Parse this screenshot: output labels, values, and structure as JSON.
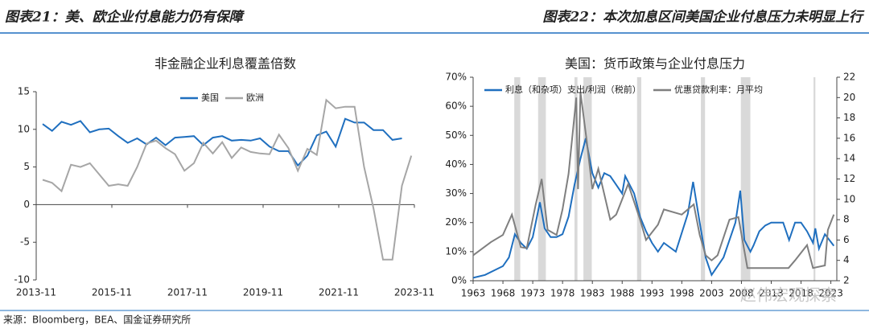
{
  "header": {
    "left_title": "图表21：美、欧企业付息能力仍有保障",
    "right_title": "图表22：本次加息区间美国企业付息压力未明显上行"
  },
  "source": "来源：Bloomberg，BEA、国金证券研究所",
  "watermark": "赵伟宏观探索",
  "chart_data": [
    {
      "type": "line",
      "title": "非金融企业利息覆盖倍数",
      "legend": "upper center",
      "x": [
        2014.0,
        2014.25,
        2014.5,
        2014.75,
        2015.0,
        2015.25,
        2015.5,
        2015.75,
        2016.0,
        2016.25,
        2016.5,
        2016.75,
        2017.0,
        2017.25,
        2017.5,
        2017.75,
        2018.0,
        2018.25,
        2018.5,
        2018.75,
        2019.0,
        2019.25,
        2019.5,
        2019.75,
        2020.0,
        2020.25,
        2020.5,
        2020.75,
        2021.0,
        2021.25,
        2021.5,
        2021.75,
        2022.0,
        2022.25,
        2022.5,
        2022.75,
        2023.0,
        2023.25,
        2023.5,
        2023.75
      ],
      "series": [
        {
          "name": "美国",
          "color": "#1f6fbf",
          "values": [
            10.7,
            9.8,
            11.0,
            10.6,
            11.1,
            9.6,
            10.0,
            10.1,
            9.1,
            8.2,
            8.8,
            8.0,
            8.9,
            7.9,
            8.9,
            9.0,
            9.1,
            7.9,
            8.9,
            9.1,
            8.5,
            8.6,
            8.5,
            8.8,
            7.7,
            7.1,
            7.1,
            5.2,
            6.5,
            9.2,
            9.7,
            7.7,
            11.4,
            10.9,
            10.9,
            9.9,
            9.9,
            8.6,
            8.8,
            null
          ]
        },
        {
          "name": "欧洲",
          "color": "#a6a6a6",
          "values": [
            3.3,
            2.9,
            1.8,
            5.3,
            5.0,
            5.5,
            4.0,
            2.5,
            2.7,
            2.5,
            5.0,
            8.1,
            8.5,
            7.5,
            6.7,
            4.5,
            5.5,
            8.2,
            6.8,
            8.3,
            6.2,
            7.6,
            7.0,
            6.8,
            6.7,
            9.3,
            7.5,
            4.5,
            7.4,
            6.6,
            13.9,
            12.8,
            13.0,
            13.0,
            5.0,
            -0.5,
            -7.3,
            -7.3,
            2.5,
            6.5
          ]
        }
      ],
      "xlim": [
        2013.83,
        2023.83
      ],
      "xticks": [
        {
          "value": 2013.83,
          "label": "2013-11"
        },
        {
          "value": 2015.83,
          "label": "2015-11"
        },
        {
          "value": 2017.83,
          "label": "2017-11"
        },
        {
          "value": 2019.83,
          "label": "2019-11"
        },
        {
          "value": 2021.83,
          "label": "2021-11"
        },
        {
          "value": 2023.83,
          "label": "2023-11"
        }
      ],
      "ylim": [
        -10,
        15
      ],
      "yticks": [
        -10,
        -5,
        0,
        5,
        10,
        15
      ]
    },
    {
      "type": "line",
      "title": "美国：货币政策与企业付息压力",
      "legend": "upper left",
      "recessions": [
        [
          1969.9,
          1970.9
        ],
        [
          1973.9,
          1975.2
        ],
        [
          1980.0,
          1980.5
        ],
        [
          1981.5,
          1982.9
        ],
        [
          1990.5,
          1991.2
        ],
        [
          2001.2,
          2001.9
        ],
        [
          2007.9,
          2009.5
        ],
        [
          2020.1,
          2020.4
        ]
      ],
      "recession_color": "#d9d9d9",
      "series": [
        {
          "name": "利息（和杂项）支出/利润（税前）",
          "color": "#1f6fbf",
          "axis": "y",
          "x": [
            1963,
            1965,
            1967,
            1968,
            1969,
            1970,
            1971,
            1972,
            1973,
            1974.2,
            1975,
            1976,
            1977,
            1978,
            1979,
            1980,
            1981,
            1981.9,
            1983,
            1984,
            1985,
            1986,
            1987,
            1988,
            1988.5,
            1990,
            1991,
            1992,
            1993,
            1994,
            1995,
            1997,
            1999,
            1999.9,
            2001,
            2002,
            2003,
            2004,
            2005,
            2006,
            2007,
            2007.8,
            2008.5,
            2009.5,
            2010,
            2011,
            2012,
            2013,
            2015,
            2016,
            2017,
            2018,
            2019,
            2020,
            2020.4,
            2021,
            2022,
            2023.5
          ],
          "values": [
            1,
            2,
            4,
            5,
            8,
            16,
            13,
            11,
            15,
            27,
            18,
            15,
            15,
            16,
            22,
            33,
            42,
            49,
            37,
            32,
            37,
            36,
            33,
            30,
            36,
            30,
            22,
            17,
            13,
            10,
            13,
            10,
            23,
            34,
            20,
            8,
            2,
            5,
            8,
            14,
            20,
            31,
            14,
            10,
            12,
            17,
            19,
            20,
            20,
            14,
            20,
            20,
            17,
            13,
            18,
            11,
            16,
            12
          ]
        },
        {
          "name": "优惠贷款利率：月平均",
          "color": "#7f7f7f",
          "axis": "y2",
          "x": [
            1963,
            1966,
            1968,
            1969.5,
            1971,
            1972,
            1973.5,
            1974.5,
            1975.5,
            1977,
            1978,
            1979,
            1980.3,
            1980.6,
            1981,
            1982,
            1983,
            1984,
            1986,
            1987,
            1989,
            1991,
            1992,
            1994,
            1995,
            1998,
            2000,
            2001,
            2002,
            2003,
            2004,
            2006,
            2007.5,
            2009,
            2015.9,
            2017,
            2019,
            2020,
            2022,
            2022.5,
            2023.5
          ],
          "values": [
            4.5,
            5.8,
            6.5,
            8.5,
            5.3,
            5.2,
            9.5,
            12,
            7,
            6.5,
            9,
            12.5,
            20,
            11,
            20.5,
            16,
            11,
            13,
            8,
            8.5,
            11.5,
            8,
            6,
            7.5,
            9,
            8.5,
            9.5,
            6.5,
            4.5,
            4,
            4.5,
            8,
            8.25,
            3.25,
            3.25,
            4,
            5.5,
            3.25,
            3.5,
            7,
            8.5
          ]
        }
      ],
      "xlim": [
        1963,
        2024
      ],
      "xticks": [
        1963,
        1968,
        1973,
        1978,
        1983,
        1988,
        1993,
        1998,
        2003,
        2008,
        2013,
        2018,
        2023
      ],
      "ylim": [
        0,
        70
      ],
      "yticks": [
        {
          "value": 0,
          "label": "0%"
        },
        {
          "value": 10,
          "label": "10%"
        },
        {
          "value": 20,
          "label": "20%"
        },
        {
          "value": 30,
          "label": "30%"
        },
        {
          "value": 40,
          "label": "40%"
        },
        {
          "value": 50,
          "label": "50%"
        },
        {
          "value": 60,
          "label": "60%"
        },
        {
          "value": 70,
          "label": "70%"
        }
      ],
      "y2lim": [
        2,
        22
      ],
      "y2ticks": [
        2,
        4,
        6,
        8,
        10,
        12,
        14,
        16,
        18,
        20,
        22
      ]
    }
  ]
}
